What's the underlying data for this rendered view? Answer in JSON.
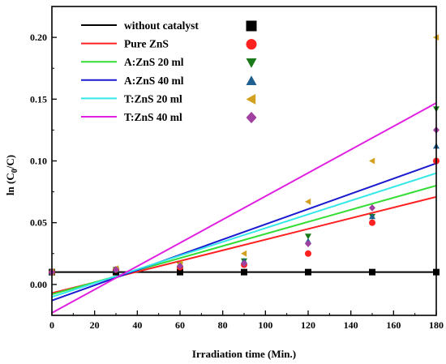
{
  "chart_data": {
    "type": "scatter",
    "xlabel": "Irradiation time (Min.)",
    "ylabel_main": "ln (C",
    "ylabel_sub": "0",
    "ylabel_tail": "/C)",
    "xlim": [
      0,
      180
    ],
    "ylim": [
      -0.025,
      0.225
    ],
    "xticks": [
      0,
      20,
      40,
      60,
      80,
      100,
      120,
      140,
      160,
      180
    ],
    "yticks": [
      0.0,
      0.05,
      0.1,
      0.15,
      0.2
    ],
    "ytick_labels": [
      "0.00",
      "0.05",
      "0.10",
      "0.15",
      "0.20"
    ],
    "grid": false,
    "legend_position": "top-left",
    "series": [
      {
        "name": "without catalyst",
        "color": "#000000",
        "marker": "square",
        "x": [
          0,
          30,
          60,
          90,
          120,
          150,
          180
        ],
        "y": [
          0.01,
          0.01,
          0.01,
          0.01,
          0.01,
          0.01,
          0.01
        ],
        "fit": {
          "slope": 0.0,
          "intercept": 0.01
        }
      },
      {
        "name": "Pure ZnS",
        "color": "#ff2020",
        "marker": "circle",
        "x": [
          0,
          30,
          60,
          90,
          120,
          150,
          180
        ],
        "y": [
          0.01,
          0.012,
          0.014,
          0.016,
          0.025,
          0.05,
          0.1
        ],
        "fit": {
          "slope": 0.000433,
          "intercept": -0.007
        }
      },
      {
        "name": "A:ZnS 20 ml",
        "color": "#1a7a1a",
        "line_color": "#33dd33",
        "marker": "triangle-down",
        "x": [
          0,
          30,
          60,
          90,
          120,
          150,
          180
        ],
        "y": [
          0.01,
          0.012,
          0.016,
          0.019,
          0.039,
          0.055,
          0.142
        ],
        "fit": {
          "slope": 0.000489,
          "intercept": -0.008
        }
      },
      {
        "name": "A:ZnS 40 ml",
        "color": "#1f5f8f",
        "line_color": "#1a1ad0",
        "marker": "triangle-up",
        "x": [
          0,
          30,
          60,
          90,
          120,
          150,
          180
        ],
        "y": [
          0.01,
          0.012,
          0.016,
          0.019,
          0.035,
          0.055,
          0.112
        ],
        "fit": {
          "slope": 0.000617,
          "intercept": -0.013
        }
      },
      {
        "name": "T:ZnS 20 ml",
        "color": "#d4a020",
        "line_color": "#33e8e8",
        "marker": "triangle-left",
        "x": [
          0,
          30,
          60,
          90,
          120,
          150,
          180
        ],
        "y": [
          0.01,
          0.013,
          0.017,
          0.025,
          0.067,
          0.1,
          0.2
        ],
        "fit": {
          "slope": 0.000556,
          "intercept": -0.01
        }
      },
      {
        "name": "T:ZnS 40 ml",
        "color": "#a040a0",
        "line_color": "#e020e0",
        "marker": "diamond",
        "x": [
          0,
          30,
          60,
          90,
          120,
          150,
          180
        ],
        "y": [
          0.01,
          0.012,
          0.015,
          0.017,
          0.033,
          0.062,
          0.125
        ],
        "fit": {
          "slope": 0.000944,
          "intercept": -0.023
        }
      }
    ]
  }
}
